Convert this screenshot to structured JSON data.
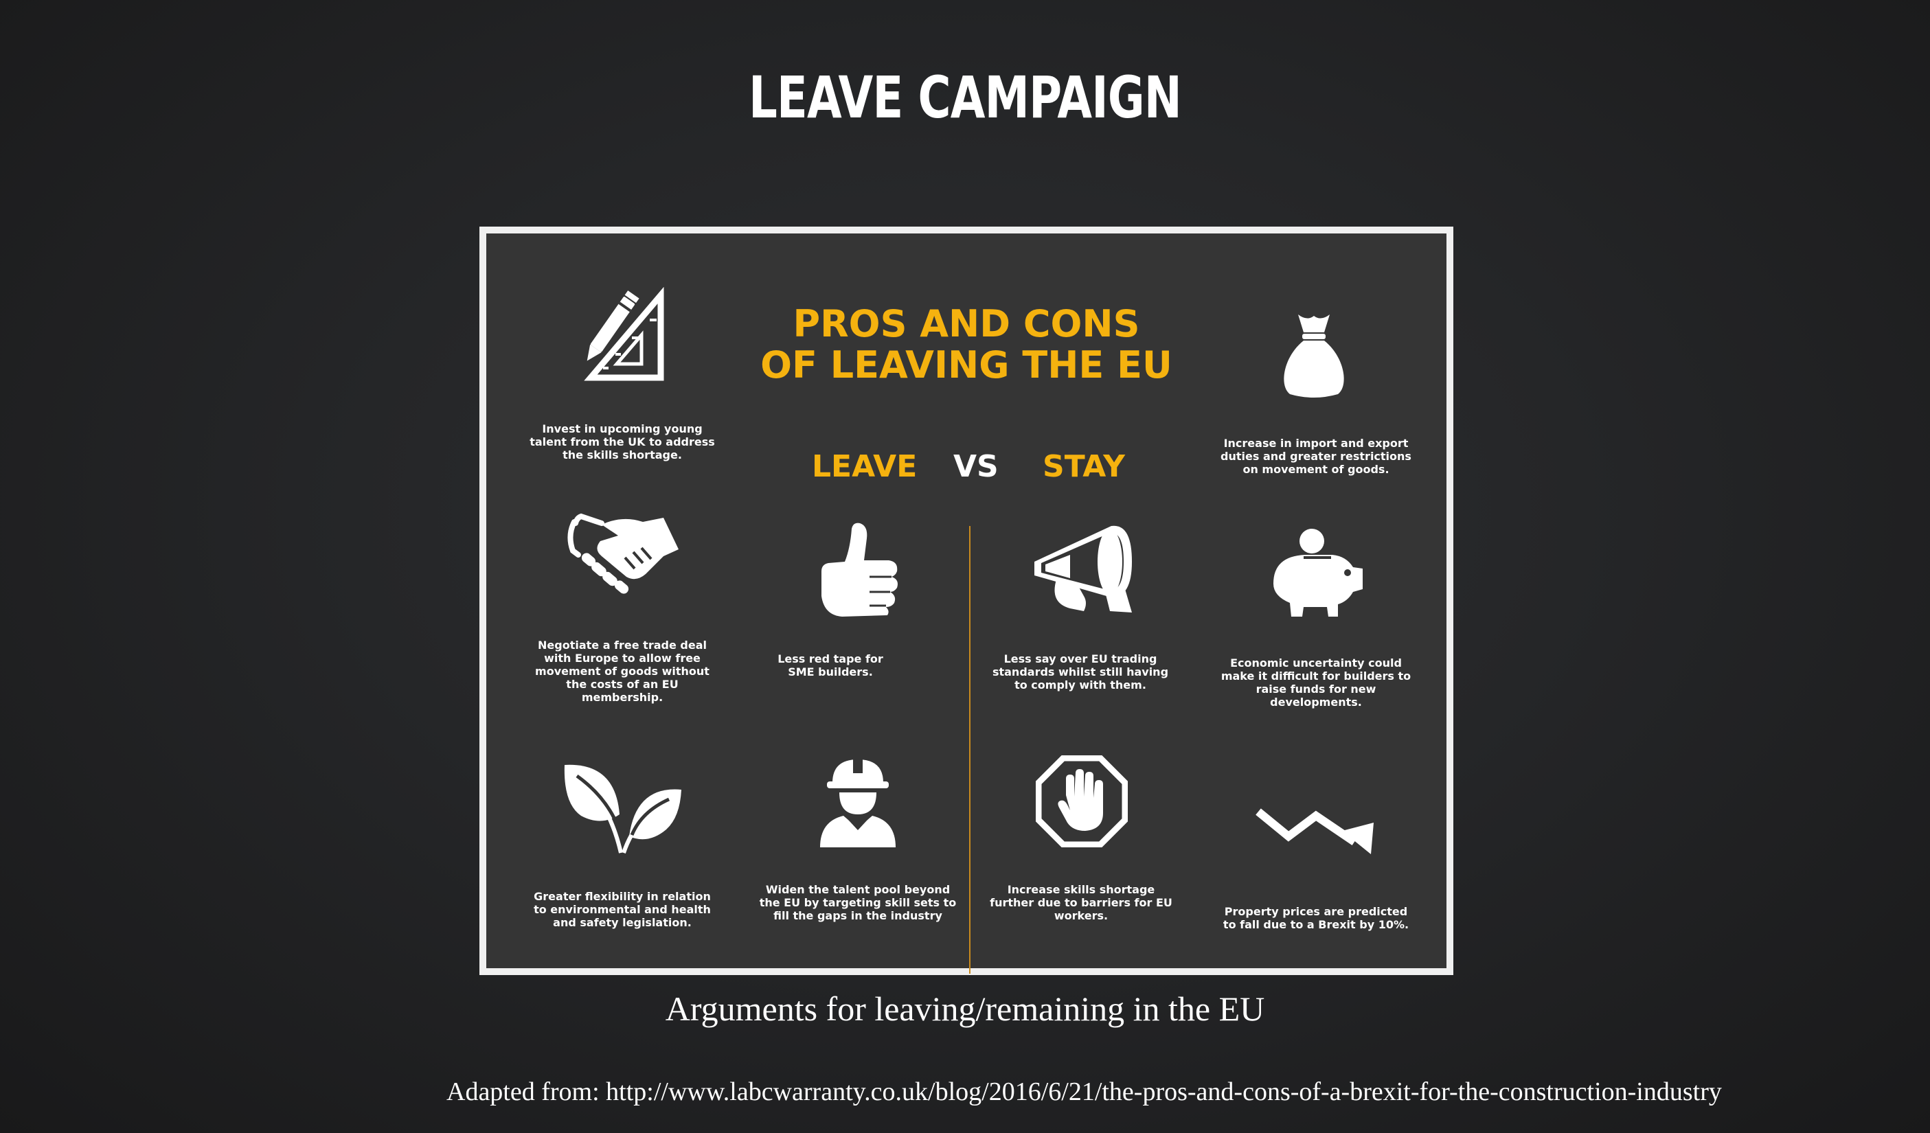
{
  "slide": {
    "title": "LEAVE CAMPAIGN",
    "caption": "Arguments for leaving/remaining in the EU",
    "source": "Adapted from: http://www.labcwarranty.co.uk/blog/2016/6/21/the-pros-and-cons-of-a-brexit-for-the-construction-industry"
  },
  "infographic": {
    "title_line1": "PROS AND CONS",
    "title_line2": "OF LEAVING THE EU",
    "leave_label": "LEAVE",
    "vs_label": "VS",
    "stay_label": "STAY",
    "accent_color": "#f5b20f",
    "items": [
      {
        "icon": "pencil-ruler-icon",
        "text": "Invest in upcoming young talent from the UK to address the skills shortage."
      },
      {
        "icon": "money-bag-icon",
        "text": "Increase in import and export duties and greater restrictions on movement of goods."
      },
      {
        "icon": "handshake-icon",
        "text": "Negotiate a free trade deal with Europe to allow free movement of goods without the costs of an EU membership."
      },
      {
        "icon": "thumbs-up-icon",
        "text": "Less red tape for SME builders."
      },
      {
        "icon": "megaphone-icon",
        "text": "Less say over EU trading standards whilst still having to comply with them."
      },
      {
        "icon": "piggy-bank-icon",
        "text": "Economic uncertainty could make it difficult for builders to raise funds for new developments."
      },
      {
        "icon": "leaves-icon",
        "text": "Greater flexibility in relation to environmental and health and safety legislation."
      },
      {
        "icon": "construction-worker-icon",
        "text": "Widen the talent pool beyond the EU by targeting skill sets to fill the gaps in the industry"
      },
      {
        "icon": "stop-hand-icon",
        "text": "Increase skills shortage further due to barriers for EU workers."
      },
      {
        "icon": "trend-down-arrow-icon",
        "text": "Property prices are predicted to fall due to a Brexit by 10%."
      }
    ]
  }
}
